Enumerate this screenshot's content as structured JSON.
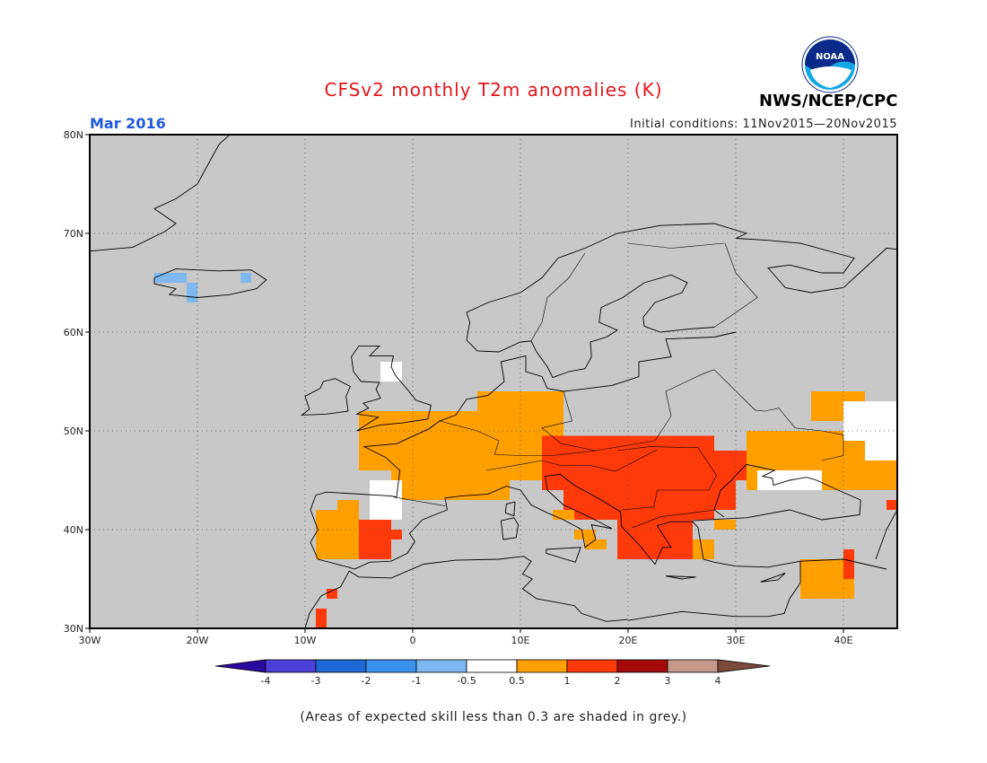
{
  "header": {
    "title": "CFSv2 monthly T2m anomalies (K)",
    "month": "Mar 2016",
    "initial_conditions": "Initial conditions: 11Nov2015—20Nov2015",
    "agency": "NWS/NCEP/CPC",
    "logo_text": "NOAA"
  },
  "map": {
    "x_ticks": [
      "30W",
      "20W",
      "10W",
      "0",
      "10E",
      "20E",
      "30E",
      "40E"
    ],
    "y_ticks": [
      "80N",
      "70N",
      "60N",
      "50N",
      "40N",
      "30N"
    ],
    "lon_range": [
      -30,
      45
    ],
    "lat_range": [
      30,
      80
    ],
    "background_color": "#c8c8c8",
    "coast_color": "#000000"
  },
  "colorbar": {
    "labels": [
      "-4",
      "-3",
      "-2",
      "-1",
      "-0.5",
      "0.5",
      "1",
      "2",
      "3",
      "4"
    ],
    "colors": [
      "#2a0a9e",
      "#4a3fd6",
      "#1d67d6",
      "#3b92ec",
      "#7db8f0",
      "#ffffff",
      "#ffa000",
      "#ff3a0a",
      "#a50a0a",
      "#c4998a",
      "#7a4a3a"
    ]
  },
  "footnote": "(Areas of expected skill less than 0.3 are shaded in grey.)"
}
